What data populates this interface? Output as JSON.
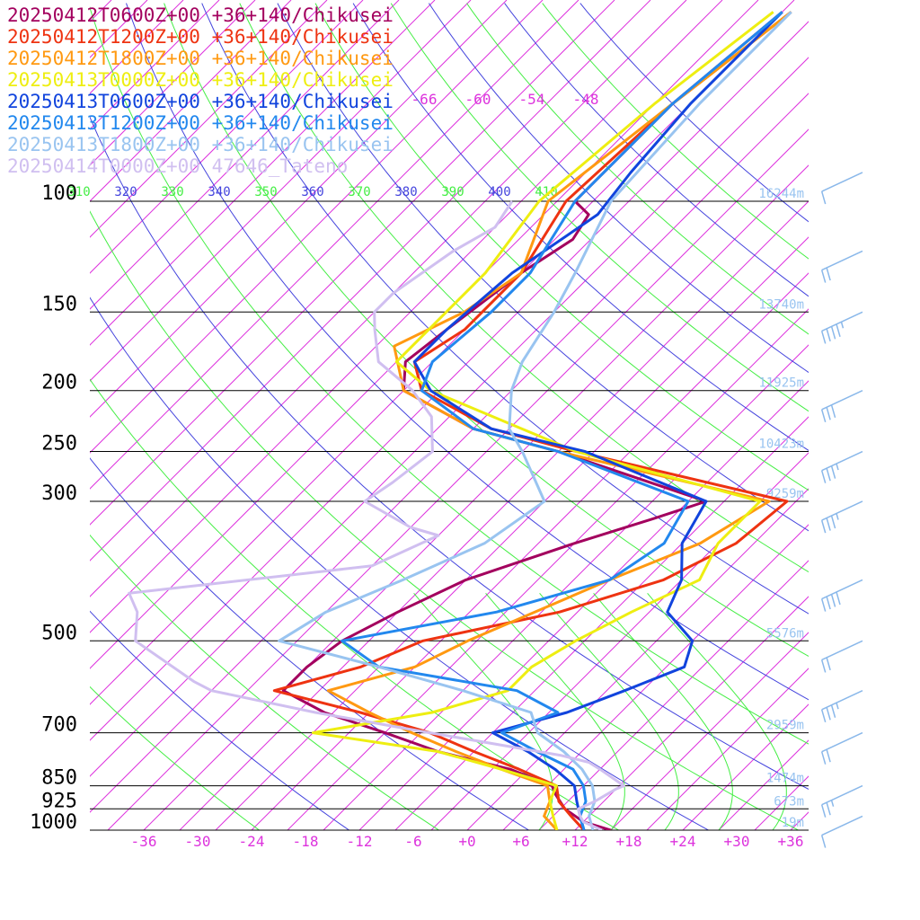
{
  "chart_data": {
    "type": "line",
    "legend_placement": "top-left",
    "series": [
      {
        "name": "20250412T0600Z+00 +36+140/Chikusei",
        "color": "#a3005e",
        "profile": [
          [
            1000,
            16.0
          ],
          [
            970,
            12.0
          ],
          [
            925,
            8.5
          ],
          [
            880,
            6.0
          ],
          [
            850,
            4.5
          ],
          [
            800,
            -2.0
          ],
          [
            750,
            -12.0
          ],
          [
            700,
            -20.0
          ],
          [
            650,
            -29.0
          ],
          [
            600,
            -36.0
          ],
          [
            550,
            -36.0
          ],
          [
            500,
            -35.0
          ],
          [
            450,
            -32.0
          ],
          [
            400,
            -28.0
          ],
          [
            350,
            -20.0
          ],
          [
            320,
            -14.0
          ],
          [
            300,
            -10.0
          ],
          [
            250,
            -32.0
          ],
          [
            230,
            -44.0
          ],
          [
            200,
            -56.0
          ],
          [
            180,
            -59.0
          ],
          [
            160,
            -58.0
          ],
          [
            130,
            -56.0
          ],
          [
            115,
            -54.0
          ],
          [
            105,
            -55.0
          ],
          [
            100,
            -58.0
          ],
          [
            70,
            -58.0
          ],
          [
            50,
            -56.0
          ]
        ]
      },
      {
        "name": "20250412T1200Z+00 +36+140/Chikusei",
        "color": "#ee3311",
        "profile": [
          [
            1000,
            13.0
          ],
          [
            950,
            10.0
          ],
          [
            900,
            7.0
          ],
          [
            850,
            5.0
          ],
          [
            800,
            -1.0
          ],
          [
            750,
            -8.0
          ],
          [
            700,
            -15.0
          ],
          [
            650,
            -25.0
          ],
          [
            600,
            -37.0
          ],
          [
            550,
            -30.0
          ],
          [
            500,
            -26.0
          ],
          [
            450,
            -14.0
          ],
          [
            400,
            -6.0
          ],
          [
            350,
            -2.0
          ],
          [
            300,
            -1.0
          ],
          [
            250,
            -30.0
          ],
          [
            230,
            -42.0
          ],
          [
            200,
            -54.0
          ],
          [
            180,
            -58.0
          ],
          [
            160,
            -56.0
          ],
          [
            130,
            -56.0
          ],
          [
            100,
            -59.0
          ],
          [
            70,
            -58.0
          ],
          [
            50,
            -55.0
          ]
        ]
      },
      {
        "name": "20250412T1800Z+00 +36+140/Chikusei",
        "color": "#ff9911",
        "profile": [
          [
            1000,
            10.0
          ],
          [
            950,
            7.0
          ],
          [
            900,
            6.0
          ],
          [
            850,
            4.0
          ],
          [
            800,
            -3.0
          ],
          [
            750,
            -10.0
          ],
          [
            700,
            -17.0
          ],
          [
            650,
            -24.0
          ],
          [
            600,
            -31.0
          ],
          [
            550,
            -24.0
          ],
          [
            500,
            -21.0
          ],
          [
            400,
            -12.0
          ],
          [
            350,
            -6.0
          ],
          [
            300,
            -3.0
          ],
          [
            250,
            -32.0
          ],
          [
            230,
            -44.0
          ],
          [
            200,
            -56.0
          ],
          [
            170,
            -62.0
          ],
          [
            150,
            -58.0
          ],
          [
            130,
            -56.0
          ],
          [
            100,
            -61.0
          ],
          [
            70,
            -58.0
          ],
          [
            50,
            -55.0
          ]
        ]
      },
      {
        "name": "20250413T0000Z+00 +36+140/Chikusei",
        "color": "#eeee11",
        "profile": [
          [
            1000,
            10.0
          ],
          [
            950,
            8.0
          ],
          [
            900,
            6.0
          ],
          [
            850,
            5.0
          ],
          [
            800,
            -3.0
          ],
          [
            750,
            -12.0
          ],
          [
            700,
            -28.0
          ],
          [
            650,
            -17.0
          ],
          [
            600,
            -11.0
          ],
          [
            550,
            -11.0
          ],
          [
            500,
            -9.0
          ],
          [
            450,
            -6.0
          ],
          [
            400,
            -2.0
          ],
          [
            350,
            -4.0
          ],
          [
            300,
            -4.0
          ],
          [
            250,
            -30.0
          ],
          [
            200,
            -53.0
          ],
          [
            180,
            -60.0
          ],
          [
            160,
            -60.0
          ],
          [
            130,
            -60.0
          ],
          [
            100,
            -62.0
          ],
          [
            70,
            -60.0
          ],
          [
            50,
            -57.0
          ]
        ]
      },
      {
        "name": "20250413T0600Z+00 +36+140/Chikusei",
        "color": "#1144dd",
        "profile": [
          [
            1000,
            13.0
          ],
          [
            950,
            11.0
          ],
          [
            900,
            9.0
          ],
          [
            850,
            7.0
          ],
          [
            800,
            3.0
          ],
          [
            750,
            -2.0
          ],
          [
            700,
            -8.0
          ],
          [
            650,
            -2.0
          ],
          [
            600,
            2.0
          ],
          [
            550,
            6.0
          ],
          [
            500,
            4.0
          ],
          [
            450,
            -2.0
          ],
          [
            400,
            -4.0
          ],
          [
            350,
            -8.0
          ],
          [
            300,
            -10.0
          ],
          [
            250,
            -29.0
          ],
          [
            230,
            -42.0
          ],
          [
            200,
            -53.0
          ],
          [
            180,
            -58.0
          ],
          [
            160,
            -58.0
          ],
          [
            130,
            -57.0
          ],
          [
            105,
            -54.0
          ],
          [
            90,
            -55.0
          ],
          [
            70,
            -56.0
          ],
          [
            50,
            -56.0
          ]
        ]
      },
      {
        "name": "20250413T1200Z+00 +36+140/Chikusei",
        "color": "#2288ee",
        "profile": [
          [
            1000,
            13.0
          ],
          [
            950,
            11.0
          ],
          [
            900,
            10.0
          ],
          [
            850,
            8.0
          ],
          [
            800,
            5.0
          ],
          [
            750,
            -1.0
          ],
          [
            700,
            -7.0
          ],
          [
            650,
            -3.0
          ],
          [
            600,
            -10.0
          ],
          [
            550,
            -28.0
          ],
          [
            500,
            -35.0
          ],
          [
            450,
            -21.0
          ],
          [
            400,
            -12.0
          ],
          [
            350,
            -10.0
          ],
          [
            300,
            -12.0
          ],
          [
            250,
            -32.0
          ],
          [
            230,
            -44.0
          ],
          [
            200,
            -54.0
          ],
          [
            180,
            -56.0
          ],
          [
            150,
            -55.0
          ],
          [
            130,
            -55.0
          ],
          [
            100,
            -58.0
          ],
          [
            70,
            -58.0
          ],
          [
            50,
            -56.0
          ]
        ]
      },
      {
        "name": "20250413T1800Z+00 +36+140/Chikusei",
        "color": "#99c4f0",
        "profile": [
          [
            1000,
            14.0
          ],
          [
            950,
            12.0
          ],
          [
            900,
            11.0
          ],
          [
            850,
            9.0
          ],
          [
            800,
            6.0
          ],
          [
            750,
            2.0
          ],
          [
            700,
            -3.0
          ],
          [
            650,
            -6.0
          ],
          [
            600,
            -16.0
          ],
          [
            550,
            -28.0
          ],
          [
            500,
            -42.0
          ],
          [
            450,
            -40.0
          ],
          [
            400,
            -35.0
          ],
          [
            350,
            -30.0
          ],
          [
            300,
            -28.0
          ],
          [
            250,
            -36.0
          ],
          [
            230,
            -40.0
          ],
          [
            200,
            -44.0
          ],
          [
            180,
            -46.0
          ],
          [
            150,
            -48.0
          ],
          [
            130,
            -50.0
          ],
          [
            100,
            -54.0
          ],
          [
            70,
            -55.0
          ],
          [
            50,
            -55.0
          ]
        ]
      },
      {
        "name": "20250414T0000Z+00 47646_Tateno",
        "color": "#d0bff0",
        "profile": [
          [
            1000,
            15.0
          ],
          [
            970,
            12.0
          ],
          [
            950,
            11.0
          ],
          [
            925,
            10.0
          ],
          [
            900,
            11.0
          ],
          [
            860,
            12.0
          ],
          [
            850,
            12.5
          ],
          [
            800,
            8.0
          ],
          [
            780,
            6.0
          ],
          [
            760,
            2.0
          ],
          [
            700,
            -15.0
          ],
          [
            650,
            -30.0
          ],
          [
            600,
            -44.0
          ],
          [
            580,
            -47.0
          ],
          [
            500,
            -58.0
          ],
          [
            450,
            -61.0
          ],
          [
            420,
            -64.0
          ],
          [
            380,
            -40.0
          ],
          [
            340,
            -36.0
          ],
          [
            330,
            -40.0
          ],
          [
            300,
            -48.0
          ],
          [
            280,
            -47.0
          ],
          [
            250,
            -46.0
          ],
          [
            220,
            -50.0
          ],
          [
            200,
            -55.0
          ],
          [
            180,
            -62.0
          ],
          [
            160,
            -66.0
          ],
          [
            150,
            -68.0
          ],
          [
            140,
            -68.0
          ],
          [
            120,
            -66.0
          ],
          [
            110,
            -64.0
          ],
          [
            100,
            -65.0
          ]
        ]
      }
    ],
    "pressure_levels": [
      {
        "p": 100,
        "label": "100",
        "height": "16244m"
      },
      {
        "p": 150,
        "label": "150",
        "height": "13740m"
      },
      {
        "p": 200,
        "label": "200",
        "height": "11925m"
      },
      {
        "p": 250,
        "label": "250",
        "height": "10423m"
      },
      {
        "p": 300,
        "label": "300",
        "height": "9259m"
      },
      {
        "p": 500,
        "label": "500",
        "height": "5576m"
      },
      {
        "p": 700,
        "label": "700",
        "height": "2959m"
      },
      {
        "p": 850,
        "label": "850",
        "height": "1474m"
      },
      {
        "p": 925,
        "label": "925",
        "height": "673m"
      },
      {
        "p": 1000,
        "label": "1000",
        "height": "19m"
      }
    ],
    "temperature_ticks": [
      "-36",
      "-30",
      "-24",
      "-18",
      "-12",
      "-6",
      "+0",
      "+6",
      "+12",
      "+18",
      "+24",
      "+30",
      "+36"
    ],
    "upper_temperature_labels": [
      "-66",
      "-60",
      "-54",
      "-48"
    ],
    "theta_labels": [
      "310",
      "320",
      "330",
      "340",
      "350",
      "360",
      "370",
      "380",
      "390",
      "400",
      "410"
    ],
    "pressure_range": [
      1000,
      100
    ],
    "temperature_range_at_1000hPa": [
      -42,
      38
    ],
    "y_scale": "log",
    "skew": true,
    "colors": {
      "isobar": "#000000",
      "isotherm": "#dd33dd",
      "dry_adiabat_blue": "#4444dd",
      "dry_adiabat_green": "#44ee44",
      "moist_adiabat": "#44ee44",
      "height_label": "#99c4f0",
      "wind_barb": "#8ab8ea",
      "legend_text_8": "#d0bff0"
    },
    "wind_barbs": [
      {
        "p": 90,
        "speed_kt": 10
      },
      {
        "p": 120,
        "speed_kt": 20
      },
      {
        "p": 150,
        "speed_kt": 35
      },
      {
        "p": 200,
        "speed_kt": 30
      },
      {
        "p": 250,
        "speed_kt": 25
      },
      {
        "p": 300,
        "speed_kt": 25
      },
      {
        "p": 400,
        "speed_kt": 40
      },
      {
        "p": 500,
        "speed_kt": 20
      },
      {
        "p": 600,
        "speed_kt": 25
      },
      {
        "p": 700,
        "speed_kt": 20
      },
      {
        "p": 850,
        "speed_kt": 15
      },
      {
        "p": 950,
        "speed_kt": 10
      }
    ]
  }
}
